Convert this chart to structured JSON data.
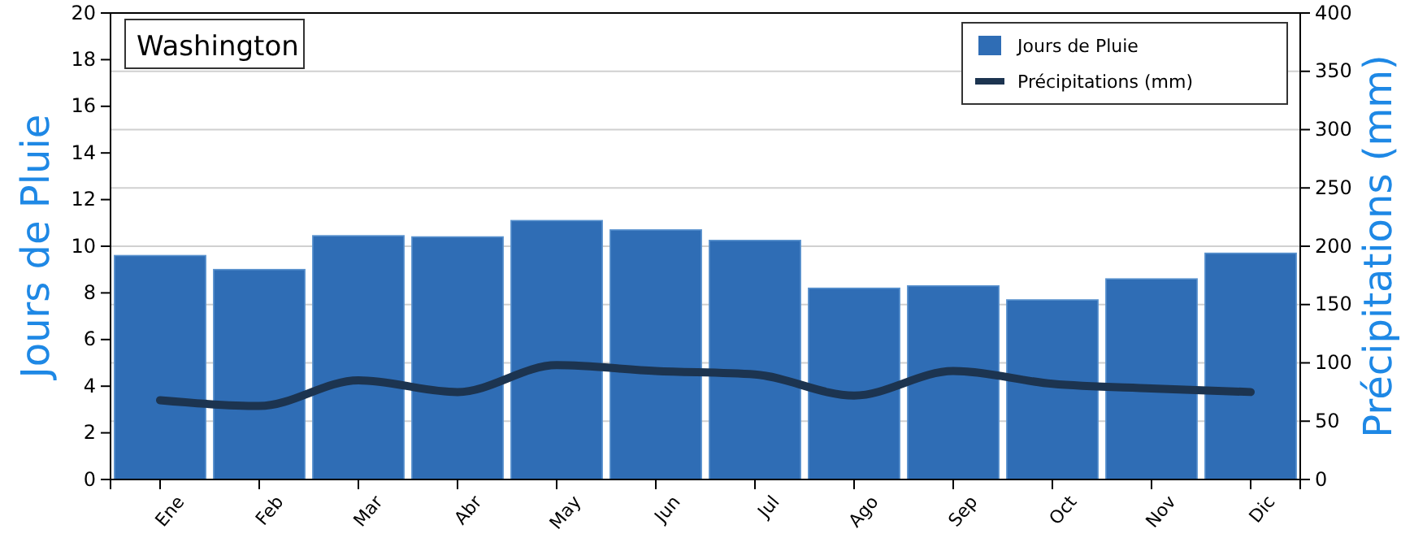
{
  "chart_data": {
    "type": "bar",
    "title": "Washington",
    "ylabel": "Jours de Pluie",
    "y2label": "Précipitations (mm)",
    "categories": [
      "Ene",
      "Feb",
      "Mar",
      "Abr",
      "May",
      "Jun",
      "Jul",
      "Ago",
      "Sep",
      "Oct",
      "Nov",
      "Dic"
    ],
    "series": [
      {
        "name": "Jours de Pluie",
        "color": "#2f6db5",
        "values": [
          9.6,
          9.0,
          10.45,
          10.4,
          11.1,
          10.7,
          10.25,
          8.2,
          8.3,
          7.7,
          8.6,
          9.7
        ]
      },
      {
        "name": "Précipitations (mm)",
        "type": "line",
        "axis": "y2",
        "color": "#1c3450",
        "values": [
          68,
          63,
          85,
          75,
          98,
          93,
          90,
          72,
          93,
          82,
          78,
          75
        ]
      }
    ],
    "ylim": [
      0,
      20
    ],
    "yticks": [
      0,
      2,
      4,
      6,
      8,
      10,
      12,
      14,
      16,
      18,
      20
    ],
    "y2lim": [
      0,
      400
    ],
    "y2ticks": [
      0,
      50,
      100,
      150,
      200,
      250,
      300,
      350,
      400
    ],
    "grid": "y2",
    "legend": "top right"
  }
}
